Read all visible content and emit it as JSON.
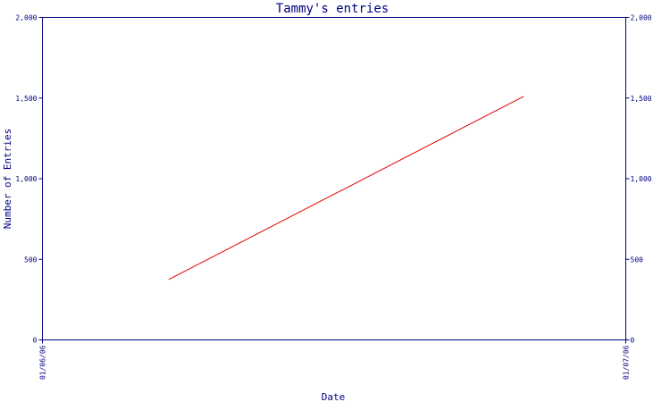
{
  "chart_data": {
    "type": "line",
    "title": "Tammy's entries",
    "xlabel": "Date",
    "ylabel": "Number of Entries",
    "x_ticks": [
      "01/06/06",
      "01/07/06"
    ],
    "y_ticks": [
      0,
      500,
      1000,
      1500,
      2000
    ],
    "y_tick_labels": [
      "0",
      "500",
      "1,000",
      "1,500",
      "2,000"
    ],
    "xlim": [
      "2006-01-06",
      "2006-01-07"
    ],
    "ylim": [
      0,
      2000
    ],
    "grid": false,
    "series": [
      {
        "color": "#e00000",
        "x": [
          "2006-01-06T05:12",
          "2006-01-06T19:48"
        ],
        "y": [
          375,
          1510
        ]
      }
    ]
  }
}
